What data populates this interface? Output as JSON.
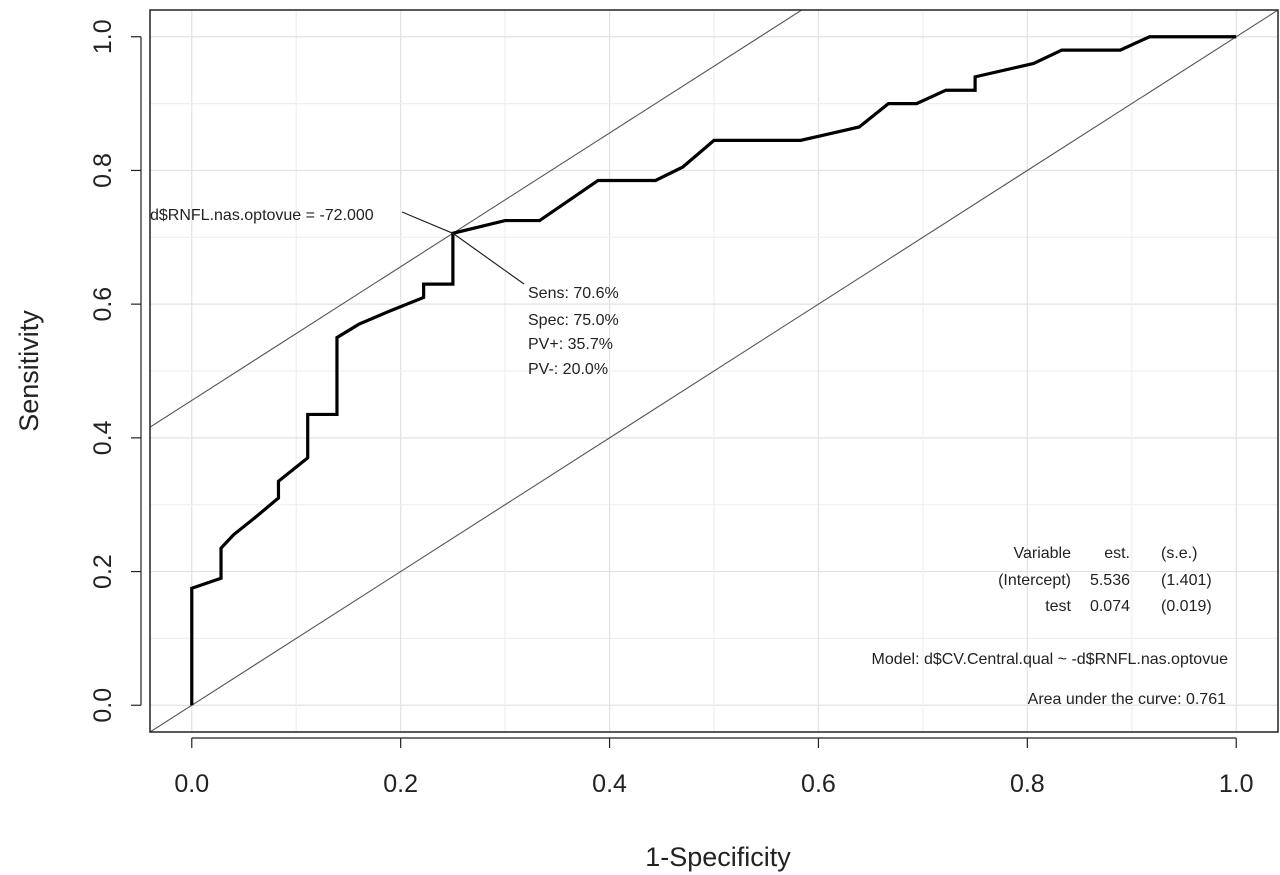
{
  "chart_data": {
    "type": "line",
    "xlabel": "1-Specificity",
    "ylabel": "Sensitivity",
    "xlim": [
      -0.04,
      1.04
    ],
    "ylim": [
      -0.04,
      1.04
    ],
    "x_ticks": [
      "0.0",
      "0.2",
      "0.4",
      "0.6",
      "0.8",
      "1.0"
    ],
    "y_ticks": [
      "0.0",
      "0.2",
      "0.4",
      "0.6",
      "0.8",
      "1.0"
    ],
    "grid": true,
    "series": [
      {
        "role": "roc-curve",
        "x": [
          0,
          0,
          0.028,
          0.028,
          0.04,
          0.06,
          0.083,
          0.083,
          0.095,
          0.111,
          0.111,
          0.139,
          0.139,
          0.16,
          0.19,
          0.222,
          0.222,
          0.25,
          0.25,
          0.3,
          0.333,
          0.389,
          0.444,
          0.47,
          0.5,
          0.583,
          0.611,
          0.639,
          0.667,
          0.694,
          0.722,
          0.75,
          0.75,
          0.806,
          0.833,
          0.889,
          0.917,
          1.0
        ],
        "y": [
          0,
          0.175,
          0.19,
          0.235,
          0.255,
          0.28,
          0.31,
          0.335,
          0.35,
          0.37,
          0.435,
          0.435,
          0.55,
          0.57,
          0.59,
          0.61,
          0.63,
          0.63,
          0.706,
          0.725,
          0.725,
          0.785,
          0.785,
          0.805,
          0.845,
          0.845,
          0.855,
          0.865,
          0.9,
          0.9,
          0.92,
          0.92,
          0.94,
          0.96,
          0.98,
          0.98,
          1.0,
          1.0
        ]
      }
    ],
    "reference_lines": [
      {
        "role": "chance-diagonal",
        "slope": 1,
        "intercept": 0
      },
      {
        "role": "optimal-cutoff-tangent",
        "slope": 1,
        "intercept": 0.456
      }
    ],
    "cutoff_point": {
      "x": 0.25,
      "y": 0.706
    },
    "annotations": {
      "cutoff_label": "d$RNFL.nas.optovue = -72.000",
      "stats": [
        "Sens: 70.6%",
        "Spec: 75.0%",
        "PV+: 35.7%",
        "PV-: 20.0%"
      ],
      "table_headers": [
        "Variable",
        "est.",
        "(s.e.)"
      ],
      "table_rows": [
        [
          "(Intercept)",
          "5.536",
          "(1.401)"
        ],
        [
          "test",
          "0.074",
          "(0.019)"
        ]
      ],
      "model": "Model:  d$CV.Central.qual ~ -d$RNFL.nas.optovue",
      "auc": "Area under the curve: 0.761"
    }
  }
}
